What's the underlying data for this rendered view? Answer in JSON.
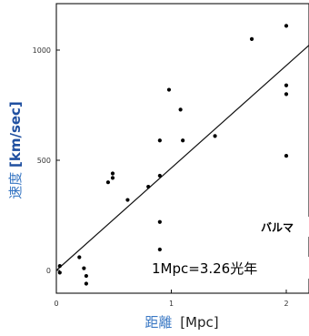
{
  "chart_data": {
    "type": "scatter",
    "title": "",
    "xlabel_cjk": "距離",
    "xlabel_unit": "[Mpc]",
    "ylabel_cjk": "速度",
    "ylabel_unit": "[km/sec]",
    "xlim": [
      0,
      2.2
    ],
    "ylim": [
      -60,
      1180
    ],
    "x_ticks": [
      "0",
      "1",
      "2"
    ],
    "y_ticks": [
      "0",
      "500",
      "1000"
    ],
    "points": [
      {
        "x": 0.03,
        "y": 20
      },
      {
        "x": 0.03,
        "y": -10
      },
      {
        "x": 0.2,
        "y": 60
      },
      {
        "x": 0.24,
        "y": 10
      },
      {
        "x": 0.26,
        "y": -25
      },
      {
        "x": 0.26,
        "y": -60
      },
      {
        "x": 0.45,
        "y": 400
      },
      {
        "x": 0.49,
        "y": 420
      },
      {
        "x": 0.49,
        "y": 440
      },
      {
        "x": 0.62,
        "y": 320
      },
      {
        "x": 0.8,
        "y": 380
      },
      {
        "x": 0.9,
        "y": 430
      },
      {
        "x": 0.9,
        "y": 590
      },
      {
        "x": 0.9,
        "y": 220
      },
      {
        "x": 0.9,
        "y": 95
      },
      {
        "x": 0.98,
        "y": 820
      },
      {
        "x": 1.08,
        "y": 730
      },
      {
        "x": 1.1,
        "y": 590
      },
      {
        "x": 1.38,
        "y": 610
      },
      {
        "x": 1.7,
        "y": 1050
      },
      {
        "x": 2.0,
        "y": 1110
      },
      {
        "x": 2.0,
        "y": 840
      },
      {
        "x": 2.0,
        "y": 800
      },
      {
        "x": 2.0,
        "y": 520
      }
    ],
    "fit_line": {
      "x": [
        0,
        2.2
      ],
      "y": [
        0,
        1023
      ]
    },
    "colors": {
      "axis_label": "#3a78c4",
      "points": "#000000",
      "line": "#111111"
    }
  },
  "annotations": {
    "line1": "バルマ",
    "line2": "1Mpc=3.26光年"
  }
}
